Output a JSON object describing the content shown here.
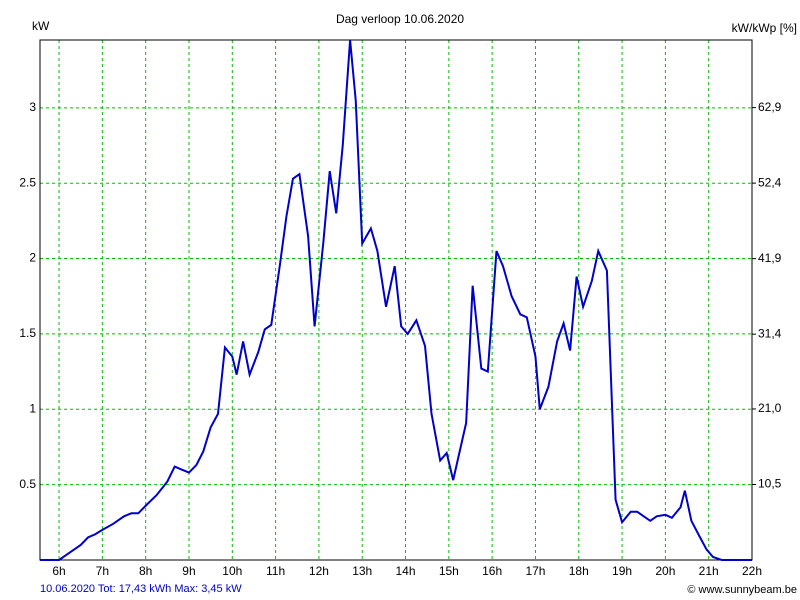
{
  "chart_data": {
    "type": "line",
    "title": "Dag  verloop 10.06.2020",
    "y_label": "kW",
    "y2_label": "kW/kWp [%]",
    "footer_left": "10.06.2020 Tot: 17,43 kWh Max: 3,45 kW",
    "footer_right": "© www.sunnybeam.be",
    "x": [
      5.56,
      6.0,
      6.25,
      6.5,
      6.67,
      6.83,
      7.0,
      7.25,
      7.5,
      7.67,
      7.83,
      8.0,
      8.25,
      8.5,
      8.67,
      8.83,
      9.0,
      9.17,
      9.33,
      9.5,
      9.67,
      9.83,
      10.0,
      10.1,
      10.25,
      10.4,
      10.6,
      10.75,
      10.9,
      11.1,
      11.25,
      11.4,
      11.55,
      11.75,
      11.9,
      12.1,
      12.25,
      12.4,
      12.55,
      12.72,
      12.85,
      13.0,
      13.2,
      13.35,
      13.55,
      13.75,
      13.9,
      14.05,
      14.25,
      14.45,
      14.6,
      14.8,
      14.95,
      15.1,
      15.4,
      15.55,
      15.75,
      15.9,
      16.1,
      16.25,
      16.45,
      16.65,
      16.8,
      17.0,
      17.1,
      17.3,
      17.5,
      17.65,
      17.8,
      17.95,
      18.1,
      18.3,
      18.45,
      18.65,
      18.85,
      19.0,
      19.2,
      19.35,
      19.5,
      19.65,
      19.8,
      20.0,
      20.15,
      20.35,
      20.45,
      20.6,
      20.8,
      20.95,
      21.1,
      21.3,
      22.0
    ],
    "series": [
      {
        "name": "kW",
        "color": "#0000cc",
        "values": [
          0,
          0,
          0.05,
          0.1,
          0.15,
          0.17,
          0.2,
          0.24,
          0.29,
          0.31,
          0.31,
          0.36,
          0.43,
          0.52,
          0.62,
          0.6,
          0.58,
          0.63,
          0.72,
          0.88,
          0.97,
          1.41,
          1.35,
          1.23,
          1.45,
          1.23,
          1.38,
          1.53,
          1.56,
          1.96,
          2.28,
          2.53,
          2.56,
          2.15,
          1.55,
          2.1,
          2.58,
          2.3,
          2.75,
          3.45,
          3.05,
          2.1,
          2.2,
          2.05,
          1.68,
          1.95,
          1.55,
          1.5,
          1.59,
          1.42,
          0.97,
          0.66,
          0.71,
          0.53,
          0.91,
          1.82,
          1.27,
          1.25,
          2.05,
          1.95,
          1.75,
          1.63,
          1.61,
          1.35,
          1.0,
          1.15,
          1.45,
          1.57,
          1.39,
          1.88,
          1.68,
          1.85,
          2.05,
          1.92,
          0.4,
          0.25,
          0.32,
          0.32,
          0.29,
          0.26,
          0.29,
          0.3,
          0.28,
          0.35,
          0.46,
          0.26,
          0.15,
          0.07,
          0.02,
          0,
          0
        ]
      }
    ],
    "xlim": [
      5.56,
      22
    ],
    "xticks": [
      {
        "value": 6,
        "label": "6h"
      },
      {
        "value": 7,
        "label": "7h"
      },
      {
        "value": 8,
        "label": "8h"
      },
      {
        "value": 9,
        "label": "9h"
      },
      {
        "value": 10,
        "label": "10h"
      },
      {
        "value": 11,
        "label": "11h"
      },
      {
        "value": 12,
        "label": "12h"
      },
      {
        "value": 13,
        "label": "13h"
      },
      {
        "value": 14,
        "label": "14h"
      },
      {
        "value": 15,
        "label": "15h"
      },
      {
        "value": 16,
        "label": "16h"
      },
      {
        "value": 17,
        "label": "17h"
      },
      {
        "value": 18,
        "label": "18h"
      },
      {
        "value": 19,
        "label": "19h"
      },
      {
        "value": 20,
        "label": "20h"
      },
      {
        "value": 21,
        "label": "21h"
      },
      {
        "value": 22,
        "label": "22h"
      }
    ],
    "ylim": [
      0,
      3.45
    ],
    "yticks": [
      0.5,
      1,
      1.5,
      2,
      2.5,
      3
    ],
    "y2lim": [
      0,
      72.3
    ],
    "y2ticks": [
      {
        "value": 10.5,
        "label": "10,5"
      },
      {
        "value": 21.0,
        "label": "21,0"
      },
      {
        "value": 31.4,
        "label": "31,4"
      },
      {
        "value": 41.9,
        "label": "41,9"
      },
      {
        "value": 52.4,
        "label": "52,4"
      },
      {
        "value": 62.9,
        "label": "62,9"
      }
    ],
    "grid": true
  }
}
